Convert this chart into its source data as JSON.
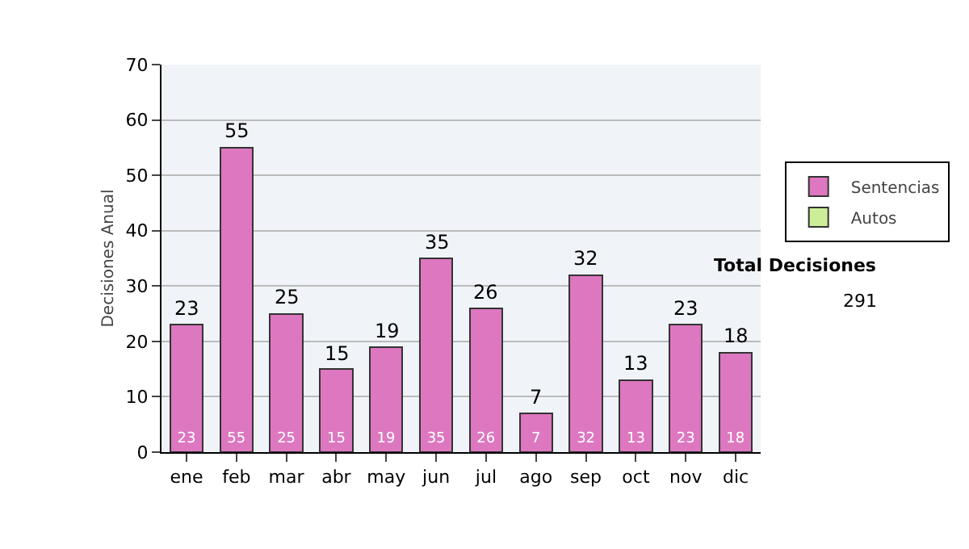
{
  "chart_data": {
    "type": "bar",
    "ylabel": "Decisiones Anual",
    "categories": [
      "ene",
      "feb",
      "mar",
      "abr",
      "may",
      "jun",
      "jul",
      "ago",
      "sep",
      "oct",
      "nov",
      "dic"
    ],
    "series": [
      {
        "name": "Sentencias",
        "color": "#dd77c0",
        "values": [
          23,
          55,
          25,
          15,
          19,
          35,
          26,
          7,
          32,
          13,
          23,
          18
        ],
        "value_labels": [
          "23",
          "55",
          "25",
          "15",
          "19",
          "35",
          "26",
          "7",
          "32",
          "13",
          "23",
          "18"
        ]
      },
      {
        "name": "Autos",
        "color": "#ccee99",
        "values": [
          null,
          null,
          null,
          null,
          null,
          null,
          null,
          null,
          null,
          null,
          null,
          null
        ]
      }
    ],
    "stacked": true,
    "totals": [
      "23",
      "55",
      "25",
      "15",
      "19",
      "35",
      "26",
      "7",
      "32",
      "13",
      "23",
      "18"
    ],
    "ylim": [
      0,
      70
    ],
    "yticks": [
      0,
      10,
      20,
      30,
      40,
      50,
      60,
      70
    ],
    "grid": "y",
    "legend": "right",
    "annotations": [
      "Total Decisiones",
      "291"
    ]
  }
}
